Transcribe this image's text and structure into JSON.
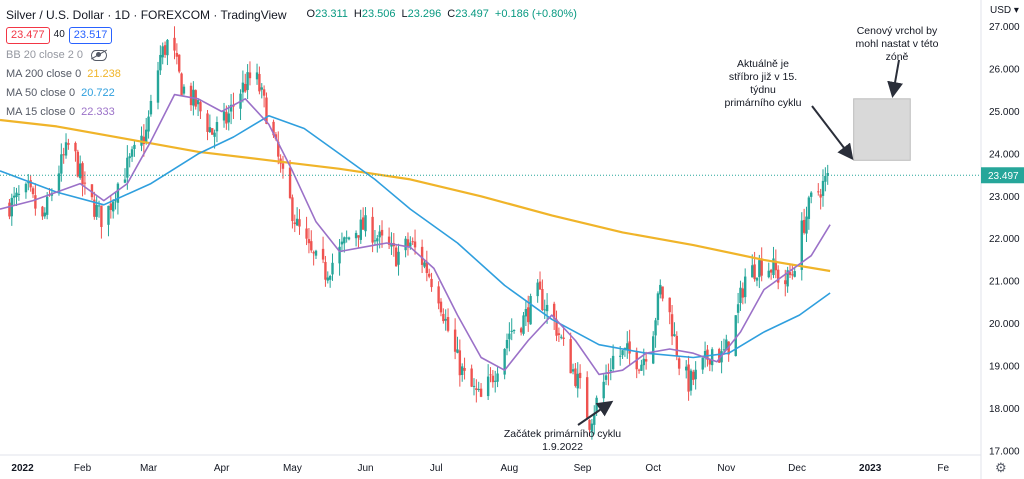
{
  "chart_data": {
    "type": "candlestick",
    "title": "Silver / U.S. Dollar · 1D · FOREXCOM · TradingView",
    "ohlc": {
      "open": "23.311",
      "high": "23.506",
      "low": "23.296",
      "close": "23.497",
      "change": "+0.186 (+0.80%)"
    },
    "bid": "23.477",
    "spread": "40",
    "ask": "23.517",
    "currency": "USD",
    "last_price": "23.497",
    "ylim": [
      16.9,
      27.3
    ],
    "y_ticks": [
      "27.000",
      "26.000",
      "25.000",
      "24.000",
      "23.000",
      "22.000",
      "21.000",
      "20.000",
      "19.000",
      "18.000",
      "17.000"
    ],
    "y_tick_values": [
      27,
      26,
      25,
      24,
      23,
      22,
      21,
      20,
      19,
      18,
      17
    ],
    "x_labels": [
      "2022",
      "Feb",
      "Mar",
      "Apr",
      "May",
      "Jun",
      "Jul",
      "Aug",
      "Sep",
      "Oct",
      "Nov",
      "Dec",
      "2023",
      "Fe"
    ],
    "x_label_days": [
      0,
      31,
      59,
      90,
      120,
      151,
      181,
      212,
      243,
      273,
      304,
      334,
      365,
      396
    ],
    "x_range_days": [
      -4,
      412
    ],
    "price_path": [
      [
        0,
        22.8
      ],
      [
        8,
        23.1
      ],
      [
        14,
        22.4
      ],
      [
        20,
        23.5
      ],
      [
        26,
        24.3
      ],
      [
        32,
        23.1
      ],
      [
        40,
        22.4
      ],
      [
        46,
        23.3
      ],
      [
        52,
        23.9
      ],
      [
        58,
        24.5
      ],
      [
        64,
        26.3
      ],
      [
        68,
        26.7
      ],
      [
        73,
        25.6
      ],
      [
        80,
        25.1
      ],
      [
        86,
        24.5
      ],
      [
        92,
        24.8
      ],
      [
        98,
        25.5
      ],
      [
        104,
        25.9
      ],
      [
        110,
        24.8
      ],
      [
        116,
        23.4
      ],
      [
        122,
        22.3
      ],
      [
        128,
        21.6
      ],
      [
        134,
        21.2
      ],
      [
        140,
        21.7
      ],
      [
        146,
        22.2
      ],
      [
        152,
        22.3
      ],
      [
        158,
        21.9
      ],
      [
        164,
        21.6
      ],
      [
        170,
        21.9
      ],
      [
        176,
        21.4
      ],
      [
        182,
        20.7
      ],
      [
        188,
        19.4
      ],
      [
        194,
        18.6
      ],
      [
        200,
        18.2
      ],
      [
        206,
        18.9
      ],
      [
        212,
        19.8
      ],
      [
        218,
        20.1
      ],
      [
        224,
        20.7
      ],
      [
        230,
        20.2
      ],
      [
        236,
        19.3
      ],
      [
        242,
        18.5
      ],
      [
        246,
        17.7
      ],
      [
        250,
        18.3
      ],
      [
        256,
        19.2
      ],
      [
        262,
        19.3
      ],
      [
        268,
        19.1
      ],
      [
        272,
        19.6
      ],
      [
        276,
        20.8
      ],
      [
        280,
        20.2
      ],
      [
        284,
        19.1
      ],
      [
        288,
        18.6
      ],
      [
        292,
        18.8
      ],
      [
        298,
        19.4
      ],
      [
        302,
        19.2
      ],
      [
        306,
        19.6
      ],
      [
        312,
        21.1
      ],
      [
        318,
        21.4
      ],
      [
        324,
        21.3
      ],
      [
        328,
        20.9
      ],
      [
        332,
        21.2
      ],
      [
        336,
        22.2
      ],
      [
        340,
        22.9
      ],
      [
        344,
        23.2
      ],
      [
        348,
        23.5
      ]
    ],
    "series": [
      {
        "name": "MA 200 close 0",
        "value_label": "21.238",
        "color": "#f0b429",
        "points": [
          [
            -4,
            24.8
          ],
          [
            20,
            24.65
          ],
          [
            50,
            24.35
          ],
          [
            80,
            24.05
          ],
          [
            110,
            23.85
          ],
          [
            140,
            23.65
          ],
          [
            170,
            23.4
          ],
          [
            200,
            23.0
          ],
          [
            230,
            22.55
          ],
          [
            260,
            22.15
          ],
          [
            290,
            21.85
          ],
          [
            320,
            21.5
          ],
          [
            348,
            21.24
          ]
        ]
      },
      {
        "name": "MA 50 close 0",
        "value_label": "20.722",
        "color": "#2f9fde",
        "points": [
          [
            -4,
            23.6
          ],
          [
            20,
            23.1
          ],
          [
            40,
            22.8
          ],
          [
            60,
            23.3
          ],
          [
            80,
            24.0
          ],
          [
            95,
            24.4
          ],
          [
            110,
            24.9
          ],
          [
            125,
            24.6
          ],
          [
            140,
            24.0
          ],
          [
            155,
            23.4
          ],
          [
            170,
            22.7
          ],
          [
            190,
            21.9
          ],
          [
            210,
            20.9
          ],
          [
            230,
            20.1
          ],
          [
            250,
            19.5
          ],
          [
            270,
            19.3
          ],
          [
            290,
            19.2
          ],
          [
            305,
            19.3
          ],
          [
            320,
            19.8
          ],
          [
            335,
            20.2
          ],
          [
            348,
            20.72
          ]
        ]
      },
      {
        "name": "MA 15 close 0",
        "value_label": "22.333",
        "color": "#9b71c8",
        "points": [
          [
            -4,
            22.7
          ],
          [
            10,
            22.9
          ],
          [
            20,
            23.1
          ],
          [
            30,
            23.3
          ],
          [
            40,
            22.9
          ],
          [
            50,
            23.3
          ],
          [
            60,
            24.3
          ],
          [
            70,
            25.4
          ],
          [
            80,
            25.3
          ],
          [
            90,
            25.0
          ],
          [
            100,
            25.3
          ],
          [
            110,
            24.7
          ],
          [
            120,
            23.6
          ],
          [
            130,
            22.4
          ],
          [
            140,
            21.7
          ],
          [
            150,
            21.8
          ],
          [
            160,
            21.9
          ],
          [
            170,
            21.8
          ],
          [
            180,
            21.3
          ],
          [
            190,
            20.2
          ],
          [
            200,
            19.2
          ],
          [
            210,
            18.9
          ],
          [
            220,
            19.6
          ],
          [
            230,
            20.2
          ],
          [
            240,
            19.6
          ],
          [
            250,
            18.8
          ],
          [
            260,
            18.9
          ],
          [
            270,
            19.3
          ],
          [
            280,
            19.4
          ],
          [
            290,
            19.3
          ],
          [
            300,
            19.1
          ],
          [
            310,
            19.8
          ],
          [
            320,
            20.8
          ],
          [
            330,
            21.2
          ],
          [
            340,
            21.6
          ],
          [
            348,
            22.33
          ]
        ]
      }
    ],
    "bb_label": "BB 20 close 2 0",
    "annotations": [
      {
        "text": "Aktuálně je stříbro již v 15. týdnu primárního cyklu",
        "lines": [
          "Aktuálně je",
          "stříbro již v 15.",
          "týdnu",
          "primárního cyklu"
        ]
      },
      {
        "text": "Cenový vrchol by mohl nastat v této zóně",
        "lines": [
          "Cenový vrchol by",
          "mohl nastat v této",
          "zóně"
        ]
      },
      {
        "text": "Začátek primárního cyklu 1.9.2022",
        "lines": [
          "Začátek primárního cyklu",
          "1.9.2022"
        ]
      }
    ],
    "zone": {
      "x_days": [
        358,
        382
      ],
      "y_range": [
        23.85,
        25.3
      ]
    },
    "grid": false,
    "legend_position": "top-left"
  }
}
